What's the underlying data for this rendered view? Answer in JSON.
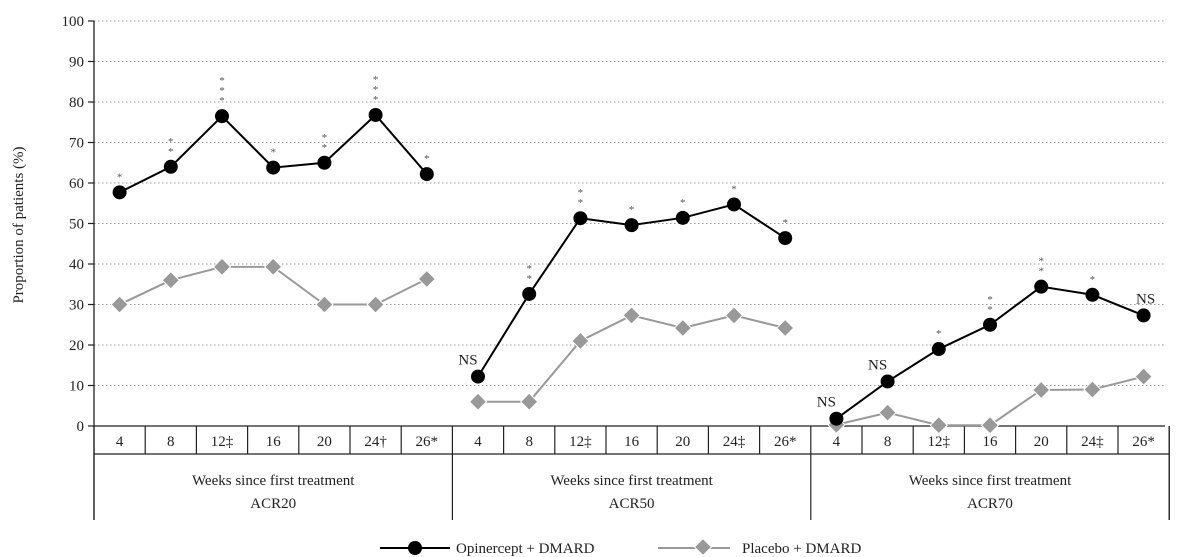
{
  "chart_data": {
    "type": "line",
    "ylabel": "Proportion of patients (%)",
    "ylim": [
      0,
      100
    ],
    "yticks": [
      0,
      10,
      20,
      30,
      40,
      50,
      60,
      70,
      80,
      90,
      100
    ],
    "grid": "horizontal dotted",
    "legend_position": "bottom-center",
    "series_colors": {
      "opinercept": "#000000",
      "placebo": "#999999"
    },
    "groups": [
      {
        "name": "ACR20",
        "xlabel": "Weeks since first treatment",
        "categories": [
          "4",
          "8",
          "12‡",
          "16",
          "20",
          "24†",
          "26*"
        ],
        "series": [
          {
            "name": "Opinercept + DMARD",
            "values": [
              57.7,
              64,
              76.5,
              63.8,
              65,
              76.8,
              62.2
            ]
          },
          {
            "name": "Placebo + DMARD",
            "values": [
              30,
              36,
              39.3,
              39.3,
              30,
              30,
              36.3
            ]
          }
        ],
        "annotations": [
          "*",
          "**",
          "***",
          "*",
          "**",
          "***",
          "*"
        ]
      },
      {
        "name": "ACR50",
        "xlabel": "Weeks since first treatment",
        "categories": [
          "4",
          "8",
          "12‡",
          "16",
          "20",
          "24‡",
          "26*"
        ],
        "series": [
          {
            "name": "Opinercept + DMARD",
            "values": [
              12.2,
              32.6,
              51.3,
              49.6,
              51.4,
              54.7,
              46.4
            ]
          },
          {
            "name": "Placebo + DMARD",
            "values": [
              6,
              6,
              21,
              27.3,
              24.2,
              27.3,
              24.2
            ]
          }
        ],
        "annotations": [
          "NS",
          "**",
          "**",
          "*",
          "*",
          "*",
          "*"
        ]
      },
      {
        "name": "ACR70",
        "xlabel": "Weeks since first treatment",
        "categories": [
          "4",
          "8",
          "12‡",
          "16",
          "20",
          "24‡",
          "26*"
        ],
        "series": [
          {
            "name": "Opinercept + DMARD",
            "values": [
              1.8,
              11,
              19,
              25,
              34.4,
              32.4,
              27.3
            ]
          },
          {
            "name": "Placebo + DMARD",
            "values": [
              0.3,
              3.3,
              0.2,
              0.2,
              8.9,
              9,
              12.2
            ]
          }
        ],
        "annotations": [
          "NS",
          "NS",
          "*",
          "**",
          "**",
          "*",
          "NS"
        ]
      }
    ]
  }
}
